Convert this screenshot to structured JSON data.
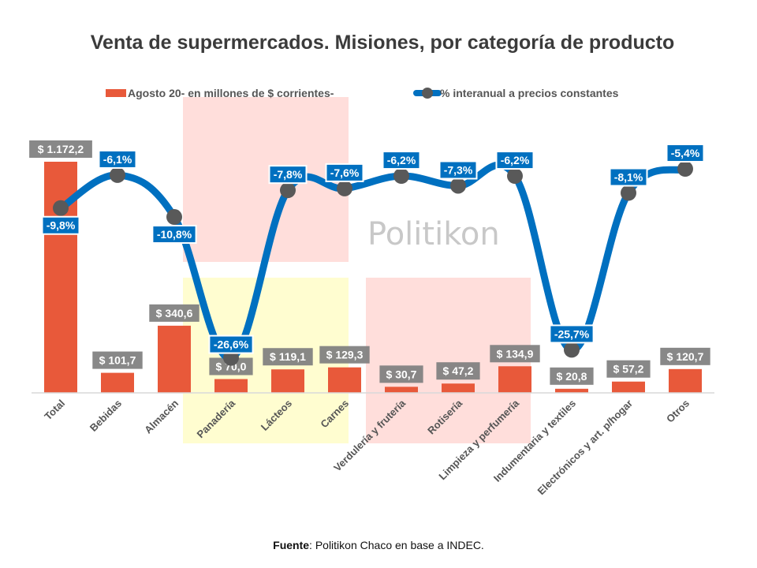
{
  "chart_data": {
    "type": "bar+line",
    "title": "Venta de supermercados. Misiones, por categoría de producto",
    "categories": [
      "Total",
      "Bebidas",
      "Almacén",
      "Panadería",
      "Lácteos",
      "Carnes",
      "Verdulería y frutería",
      "Rotisería",
      "Limpieza y perfumería",
      "Indumentaria y textiles",
      "Electrónicos y art. p/hogar",
      "Otros"
    ],
    "series": [
      {
        "name": "Agosto 20- en millones de $ corrientes-",
        "type": "bar",
        "axis": "primary",
        "color": "#E8593A",
        "values": [
          1172.2,
          101.7,
          340.6,
          70.0,
          119.1,
          129.3,
          30.7,
          47.2,
          134.9,
          20.8,
          57.2,
          120.7
        ],
        "labels": [
          "$ 1.172,2",
          "$ 101,7",
          "$ 340,6",
          "$ 70,0",
          "$ 119,1",
          "$ 129,3",
          "$ 30,7",
          "$ 47,2",
          "$ 134,9",
          "$ 20,8",
          "$ 57,2",
          "$ 120,7"
        ]
      },
      {
        "name": "% interanual a precios constantes",
        "type": "line",
        "axis": "secondary",
        "color": "#0070C0",
        "marker_color": "#595959",
        "smooth": true,
        "values": [
          -9.8,
          -6.1,
          -10.8,
          -26.6,
          -7.8,
          -7.6,
          -6.2,
          -7.3,
          -6.2,
          -25.7,
          -8.1,
          -5.4
        ],
        "labels": [
          "-9,8%",
          "-6,1%",
          "-10,8%",
          "-26,6%",
          "-7,8%",
          "-7,6%",
          "-6,2%",
          "-7,3%",
          "-6,2%",
          "-25,7%",
          "-8,1%",
          "-5,4%"
        ]
      }
    ],
    "xlabel": "",
    "ylabel": "",
    "ylim_primary": [
      0,
      1200
    ],
    "ylim_secondary": [
      -30,
      0
    ],
    "grid": false,
    "legend_position": "top",
    "bar_label_bg": "#7F7F7F",
    "line_label_bg": "#0070C0"
  },
  "watermark": "Politikon",
  "source": {
    "label": "Fuente",
    "text": ": Politikon Chaco en base a INDEC."
  }
}
